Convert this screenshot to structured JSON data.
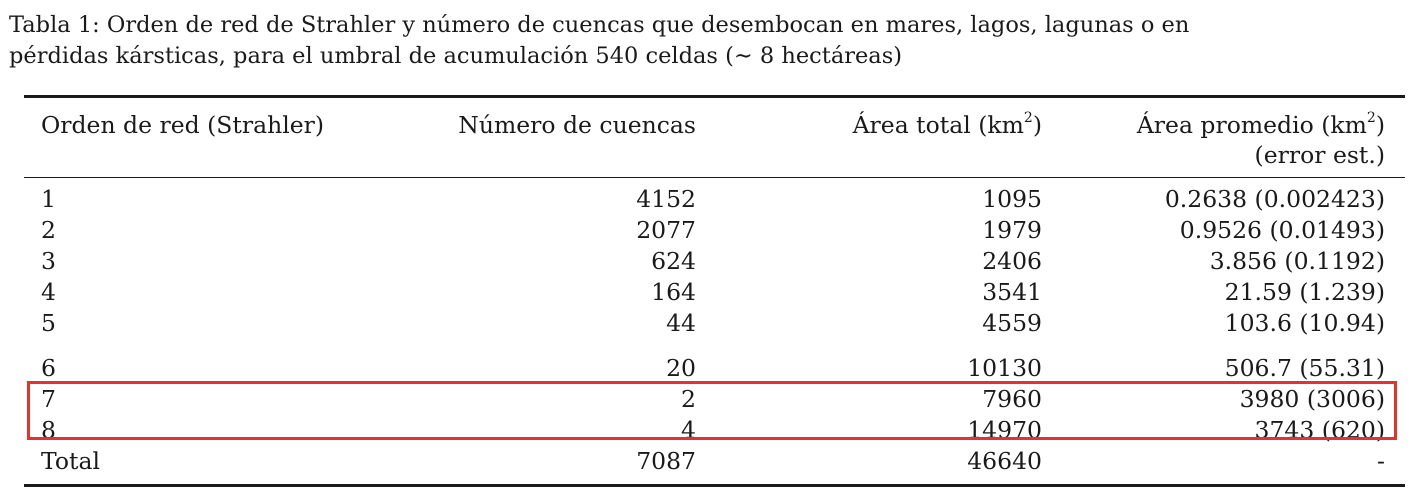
{
  "caption": {
    "line1": "Tabla 1: Orden de red de Strahler y número de cuencas que desembocan en mares, lagos, lagunas o en",
    "line2": "pérdidas kársticas, para el umbral de acumulación 540 celdas (∼ 8 hectáreas)"
  },
  "table": {
    "headers": {
      "col1": "Orden de red (Strahler)",
      "col2": "Número de cuencas",
      "col3_prefix": "Área total (km",
      "col3_sup": "2",
      "col3_suffix": ")",
      "col4_prefix": "Área promedio (km",
      "col4_sup": "2",
      "col4_suffix": ")",
      "col4_line2": "(error est.)"
    },
    "rows": [
      {
        "orden": "1",
        "numero": "4152",
        "area_total": "1095",
        "area_promedio": "0.2638 (0.002423)"
      },
      {
        "orden": "2",
        "numero": "2077",
        "area_total": "1979",
        "area_promedio": "0.9526 (0.01493)"
      },
      {
        "orden": "3",
        "numero": "624",
        "area_total": "2406",
        "area_promedio": "3.856 (0.1192)"
      },
      {
        "orden": "4",
        "numero": "164",
        "area_total": "3541",
        "area_promedio": "21.59 (1.239)"
      },
      {
        "orden": "5",
        "numero": "44",
        "area_total": "4559",
        "area_promedio": "103.6 (10.94)"
      },
      {
        "orden": "6",
        "numero": "20",
        "area_total": "10130",
        "area_promedio": "506.7 (55.31)"
      },
      {
        "orden": "7",
        "numero": "2",
        "area_total": "7960",
        "area_promedio": "3980 (3006)"
      },
      {
        "orden": "8",
        "numero": "4",
        "area_total": "14970",
        "area_promedio": "3743 (620)"
      },
      {
        "orden": "Total",
        "numero": "7087",
        "area_total": "46640",
        "area_promedio": "-"
      }
    ]
  },
  "annotation": {
    "highlight_color": "#e5332a",
    "highlighted_rows": [
      "7",
      "8"
    ]
  }
}
